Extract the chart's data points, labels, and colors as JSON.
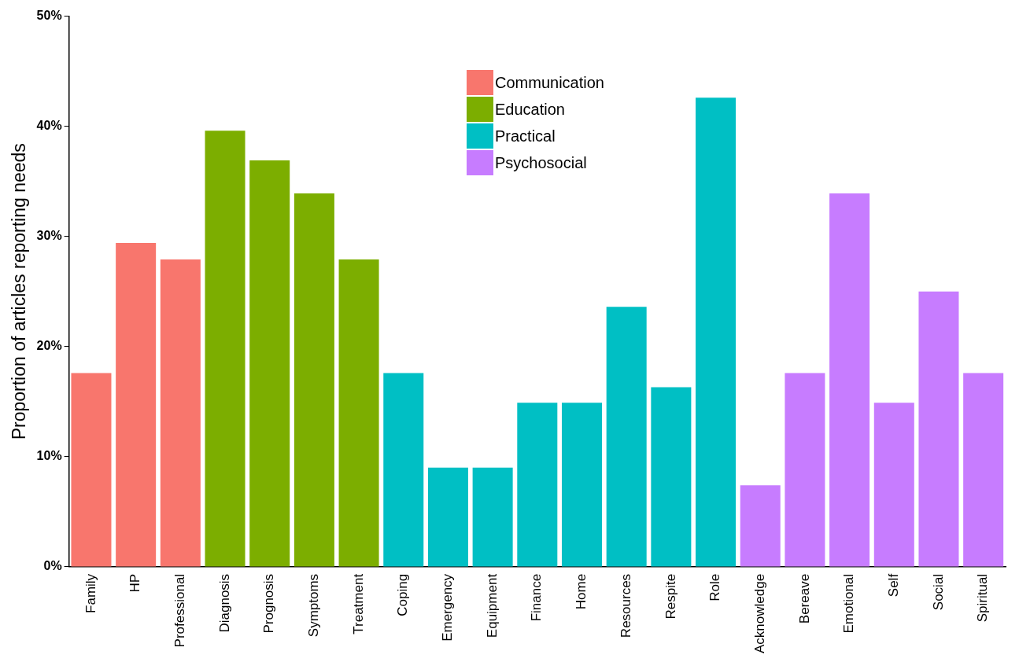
{
  "chart_data": {
    "type": "bar",
    "ylabel": "Proportion of articles reporting needs",
    "categories": [
      "Family",
      "HP",
      "Professional",
      "Diagnosis",
      "Prognosis",
      "Symptoms",
      "Treatment",
      "Coping",
      "Emergency",
      "Equipment",
      "Finance",
      "Home",
      "Resources",
      "Respite",
      "Role",
      "Acknowledge",
      "Bereave",
      "Emotional",
      "Self",
      "Social",
      "Spiritual"
    ],
    "series": [
      {
        "name": "Communication",
        "color": "#f8766d",
        "values": [
          17.6,
          29.4,
          27.9,
          null,
          null,
          null,
          null,
          null,
          null,
          null,
          null,
          null,
          null,
          null,
          null,
          null,
          null,
          null,
          null,
          null,
          null
        ]
      },
      {
        "name": "Education",
        "color": "#7cae00",
        "values": [
          null,
          null,
          null,
          39.6,
          36.9,
          33.9,
          27.9,
          null,
          null,
          null,
          null,
          null,
          null,
          null,
          null,
          null,
          null,
          null,
          null,
          null,
          null
        ]
      },
      {
        "name": "Practical",
        "color": "#00bfc4",
        "values": [
          null,
          null,
          null,
          null,
          null,
          null,
          null,
          17.6,
          9.0,
          9.0,
          14.9,
          14.9,
          23.6,
          16.3,
          42.6,
          null,
          null,
          null,
          null,
          null,
          null
        ]
      },
      {
        "name": "Psychosocial",
        "color": "#c77cff",
        "values": [
          null,
          null,
          null,
          null,
          null,
          null,
          null,
          null,
          null,
          null,
          null,
          null,
          null,
          null,
          null,
          7.4,
          17.6,
          33.9,
          14.9,
          25.0,
          17.6
        ]
      }
    ],
    "ylim": [
      0,
      50
    ],
    "yticks": [
      {
        "value": 0,
        "label": "0%"
      },
      {
        "value": 10,
        "label": "10%"
      },
      {
        "value": 20,
        "label": "20%"
      },
      {
        "value": 30,
        "label": "30%"
      },
      {
        "value": 40,
        "label": "40%"
      },
      {
        "value": 50,
        "label": "50%"
      }
    ],
    "grid": false,
    "legend": "top"
  }
}
